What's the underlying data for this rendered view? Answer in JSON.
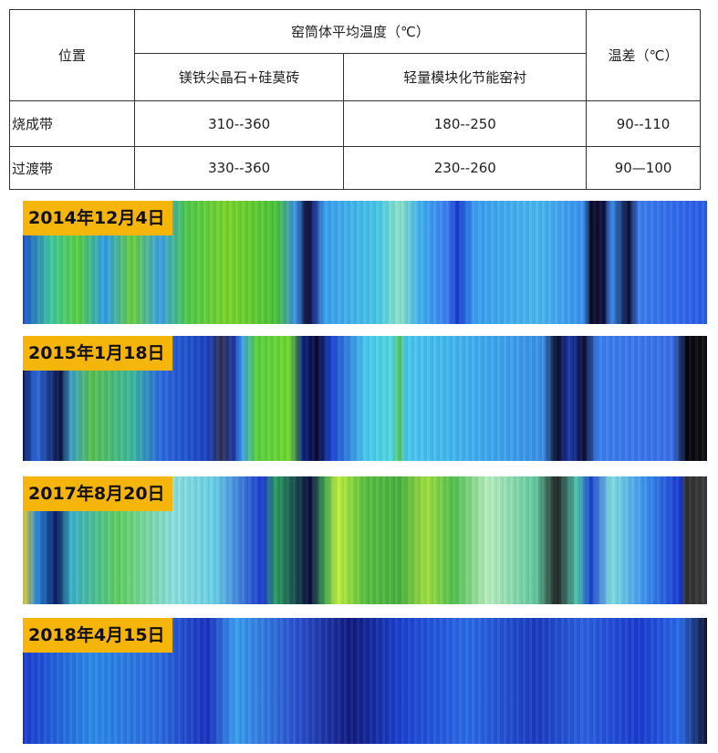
{
  "table": {
    "header": {
      "position": "位置",
      "avg_temp": "窑筒体平均温度（℃）",
      "lining_a": "镁铁尖晶石+硅莫砖",
      "lining_b": "轻量模块化节能窑衬",
      "diff": "温差（℃）"
    },
    "rows": [
      [
        "烧成带",
        "310--360",
        "180--250",
        "90--110"
      ],
      [
        "过渡带",
        "330--360",
        "230--260",
        "90—100"
      ]
    ]
  },
  "images": [
    {
      "date": "2014年12月4日"
    },
    {
      "date": "2015年1月18日"
    },
    {
      "date": "2017年8月20日"
    },
    {
      "date": "2018年4月15日"
    }
  ]
}
